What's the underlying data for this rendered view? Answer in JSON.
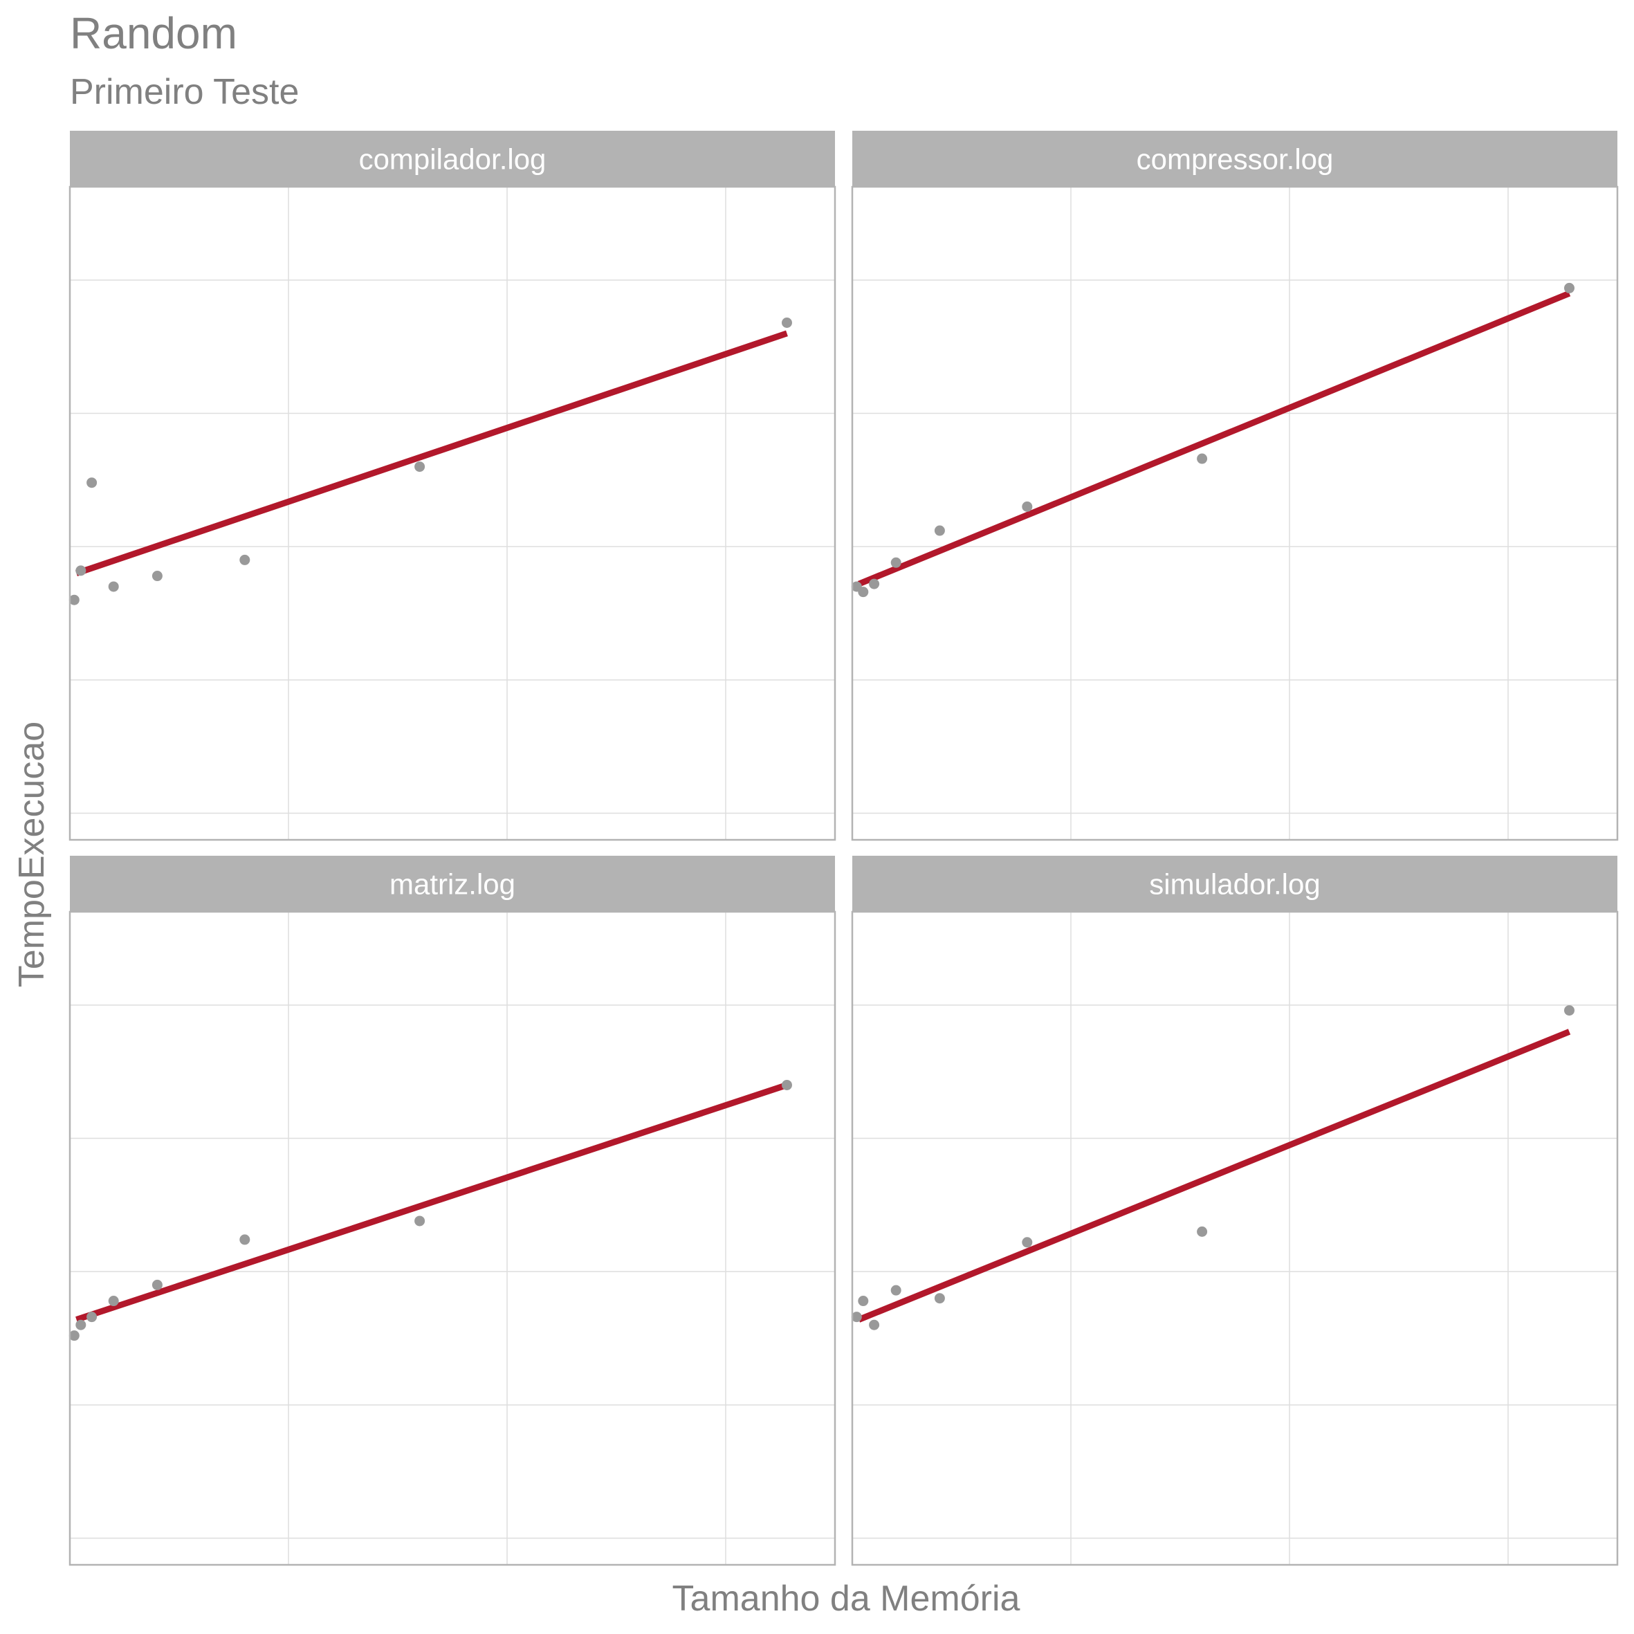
{
  "chart_data": {
    "type": "scatter",
    "title": "Random",
    "subtitle": "Primeiro Teste",
    "xlabel": "Tamanho da Memória",
    "ylabel": "TempoExecucao",
    "xlim": [
      0,
      17.5
    ],
    "ylim": [
      0,
      24.5
    ],
    "grid": true,
    "legend": "none",
    "colors": {
      "points": "#999999",
      "fit_line": "#b2182b",
      "strip_bg": "#b3b3b3",
      "strip_text": "#ffffff",
      "panel_border": "#b3b3b3",
      "grid": "#dedede",
      "text": "#808080"
    },
    "panels": [
      {
        "label": "compilador.log",
        "points": [
          [
            0.1,
            9.0
          ],
          [
            0.25,
            10.1
          ],
          [
            0.5,
            13.4
          ],
          [
            1.0,
            9.5
          ],
          [
            2.0,
            9.9
          ],
          [
            4.0,
            10.5
          ],
          [
            8.0,
            14.0
          ],
          [
            16.4,
            19.4
          ]
        ],
        "fit": [
          [
            0.15,
            10.0
          ],
          [
            16.4,
            19.0
          ]
        ]
      },
      {
        "label": "compressor.log",
        "points": [
          [
            0.1,
            9.5
          ],
          [
            0.25,
            9.3
          ],
          [
            0.5,
            9.6
          ],
          [
            1.0,
            10.4
          ],
          [
            2.0,
            11.6
          ],
          [
            4.0,
            12.5
          ],
          [
            8.0,
            14.3
          ],
          [
            16.4,
            20.7
          ]
        ],
        "fit": [
          [
            0.15,
            9.6
          ],
          [
            16.4,
            20.5
          ]
        ]
      },
      {
        "label": "matriz.log",
        "points": [
          [
            0.1,
            8.6
          ],
          [
            0.25,
            9.0
          ],
          [
            0.5,
            9.3
          ],
          [
            1.0,
            9.9
          ],
          [
            2.0,
            10.5
          ],
          [
            4.0,
            12.2
          ],
          [
            8.0,
            12.9
          ],
          [
            16.4,
            18.0
          ]
        ],
        "fit": [
          [
            0.15,
            9.2
          ],
          [
            16.4,
            18.0
          ]
        ]
      },
      {
        "label": "simulador.log",
        "points": [
          [
            0.1,
            9.3
          ],
          [
            0.25,
            9.9
          ],
          [
            0.5,
            9.0
          ],
          [
            1.0,
            10.3
          ],
          [
            2.0,
            10.0
          ],
          [
            4.0,
            12.1
          ],
          [
            8.0,
            12.5
          ],
          [
            16.4,
            20.8
          ]
        ],
        "fit": [
          [
            0.15,
            9.2
          ],
          [
            16.4,
            20.0
          ]
        ]
      }
    ]
  }
}
